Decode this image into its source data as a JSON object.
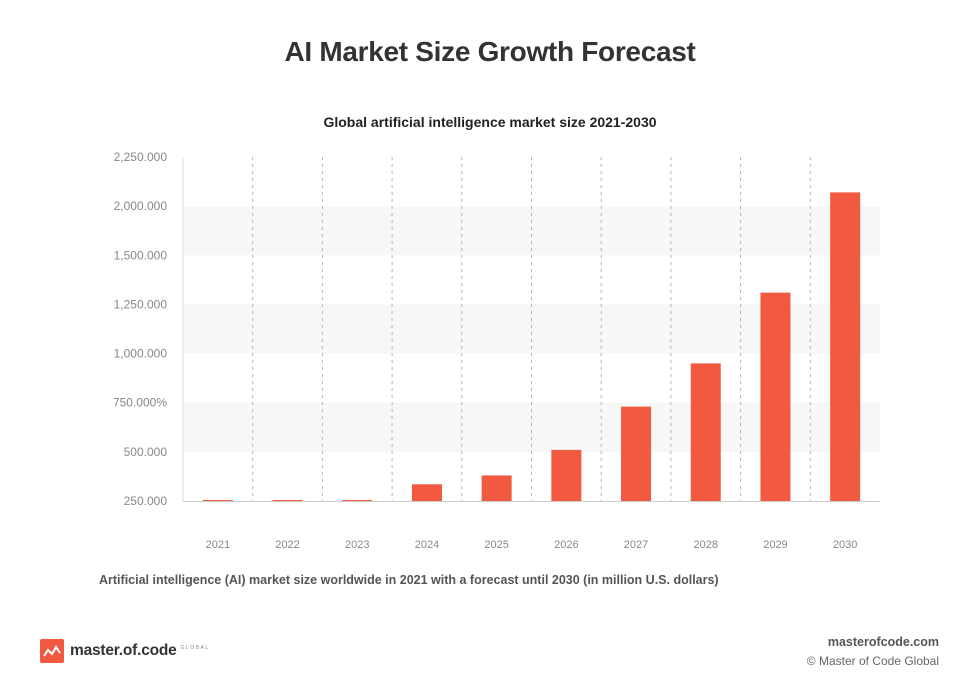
{
  "header": {
    "title": "AI Market Size Growth Forecast"
  },
  "chart_data": {
    "type": "bar",
    "title": "Global artificial intelligence market size 2021-2030",
    "categories": [
      "2021",
      "2022",
      "2023",
      "2024",
      "2025",
      "2026",
      "2027",
      "2028",
      "2029",
      "2030"
    ],
    "values": [
      0,
      0,
      0,
      85,
      130,
      260,
      480,
      700,
      1060,
      1570
    ],
    "value_units": "approximate, read from gridlines relative to the lowest tick (250.000 at the baseline)",
    "ytick_labels": [
      "250.000",
      "500.000",
      "750.000%",
      "1,000.000",
      "1,250.000",
      "1,500.000",
      "2,000.000",
      "2,250.000"
    ],
    "ylim": [
      0,
      1750
    ],
    "bar_color": "#f15a40",
    "grid": "alternating horizontal bands, dashed vertical dividers",
    "xlabel": "",
    "ylabel": ""
  },
  "caption": "Artificial intelligence (AI) market size worldwide in 2021 with a forecast until 2030 (in million U.S. dollars)",
  "footer": {
    "brand": "master.of.code",
    "brand_sub": "GLOBAL",
    "site": "masterofcode.com",
    "copyright": "© Master of Code Global"
  },
  "colors": {
    "accent": "#f15a40",
    "band": "#f7f7f7",
    "text": "#333333"
  }
}
